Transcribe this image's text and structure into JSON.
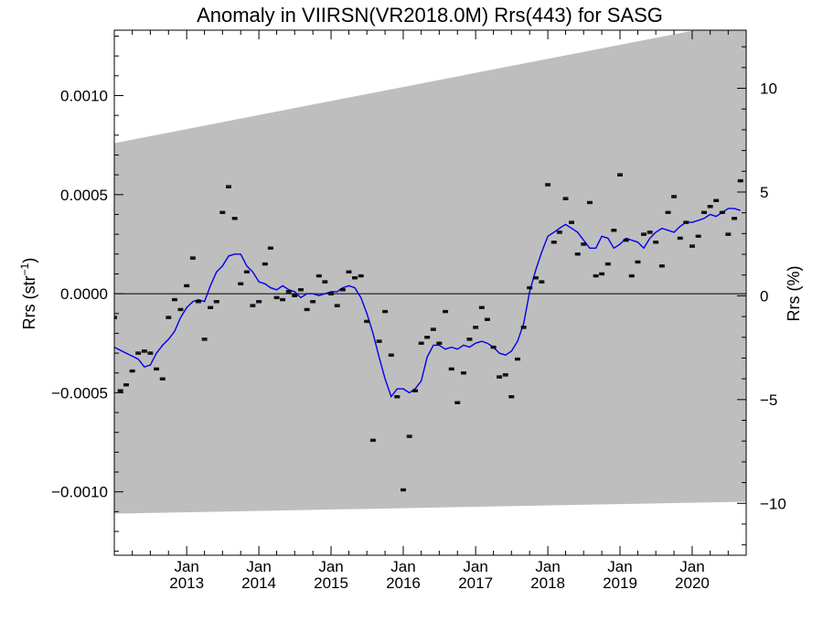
{
  "chart_data": {
    "type": "scatter",
    "title": "Anomaly in VIIRSN(VR2018.0M) Rrs(443) for SASG",
    "ylabel_left": "Rrs (str⁻¹)",
    "ylabel_left_parts": {
      "base": "Rrs (str",
      "sup": "−1",
      "close": ")"
    },
    "ylabel_right": "Rrs (%)",
    "xlim": [
      "2012-01-01",
      "2020-09-30"
    ],
    "ylim_left": [
      -0.00132,
      0.00133
    ],
    "ylim_right": [
      -12.5,
      12.8
    ],
    "left_ticks": [
      {
        "value": 0.001,
        "label": "0.0010"
      },
      {
        "value": 0.0005,
        "label": "0.0005"
      },
      {
        "value": 0.0,
        "label": "0.0000"
      },
      {
        "value": -0.0005,
        "label": "−0.0005"
      },
      {
        "value": -0.001,
        "label": "−0.0010"
      }
    ],
    "right_ticks": [
      {
        "value": 10,
        "label": "10"
      },
      {
        "value": 5,
        "label": "5"
      },
      {
        "value": 0,
        "label": "0"
      },
      {
        "value": -5,
        "label": "−5"
      },
      {
        "value": -10,
        "label": "−10"
      }
    ],
    "x_ticks": [
      {
        "date": "2013-01-01",
        "month": "Jan",
        "year": "2013"
      },
      {
        "date": "2014-01-01",
        "month": "Jan",
        "year": "2014"
      },
      {
        "date": "2015-01-01",
        "month": "Jan",
        "year": "2015"
      },
      {
        "date": "2016-01-01",
        "month": "Jan",
        "year": "2016"
      },
      {
        "date": "2017-01-01",
        "month": "Jan",
        "year": "2017"
      },
      {
        "date": "2018-01-01",
        "month": "Jan",
        "year": "2018"
      },
      {
        "date": "2019-01-01",
        "month": "Jan",
        "year": "2019"
      },
      {
        "date": "2020-01-01",
        "month": "Jan",
        "year": "2020"
      }
    ],
    "zero_line": 0.0,
    "uncertainty_band": {
      "color": "#bebebe",
      "upper": [
        {
          "date": "2012-01-01",
          "value": 0.00076
        },
        {
          "date": "2020-09-30",
          "value": 0.00138
        }
      ],
      "lower": [
        {
          "date": "2012-01-01",
          "value": -0.00111
        },
        {
          "date": "2020-09-30",
          "value": -0.00105
        }
      ]
    },
    "series": [
      {
        "style": "points",
        "color": "#000000",
        "error_bar": 6e-06,
        "points": [
          {
            "x": "2012-01-01",
            "y": -0.00012
          },
          {
            "x": "2012-02-01",
            "y": -0.00049
          },
          {
            "x": "2012-03-01",
            "y": -0.00046
          },
          {
            "x": "2012-04-01",
            "y": -0.00039
          },
          {
            "x": "2012-05-01",
            "y": -0.0003
          },
          {
            "x": "2012-06-01",
            "y": -0.00029
          },
          {
            "x": "2012-07-01",
            "y": -0.0003
          },
          {
            "x": "2012-08-01",
            "y": -0.00038
          },
          {
            "x": "2012-09-01",
            "y": -0.00043
          },
          {
            "x": "2012-10-01",
            "y": -0.00012
          },
          {
            "x": "2012-11-01",
            "y": -3e-05
          },
          {
            "x": "2012-12-01",
            "y": -8e-05
          },
          {
            "x": "2013-01-01",
            "y": 4e-05
          },
          {
            "x": "2013-02-01",
            "y": 0.00018
          },
          {
            "x": "2013-03-01",
            "y": -4e-05
          },
          {
            "x": "2013-04-01",
            "y": -0.00023
          },
          {
            "x": "2013-05-01",
            "y": -7e-05
          },
          {
            "x": "2013-06-01",
            "y": -4e-05
          },
          {
            "x": "2013-07-01",
            "y": 0.00041
          },
          {
            "x": "2013-08-01",
            "y": 0.00054
          },
          {
            "x": "2013-09-01",
            "y": 0.00038
          },
          {
            "x": "2013-10-01",
            "y": 5e-05
          },
          {
            "x": "2013-11-01",
            "y": 0.00011
          },
          {
            "x": "2013-12-01",
            "y": -6e-05
          },
          {
            "x": "2014-01-01",
            "y": -4e-05
          },
          {
            "x": "2014-02-01",
            "y": 0.00015
          },
          {
            "x": "2014-03-01",
            "y": 0.00023
          },
          {
            "x": "2014-04-01",
            "y": -2e-05
          },
          {
            "x": "2014-05-01",
            "y": -3e-05
          },
          {
            "x": "2014-06-01",
            "y": 1e-05
          },
          {
            "x": "2014-07-01",
            "y": -1e-05
          },
          {
            "x": "2014-08-01",
            "y": 2e-05
          },
          {
            "x": "2014-09-01",
            "y": -8e-05
          },
          {
            "x": "2014-10-01",
            "y": -4e-05
          },
          {
            "x": "2014-11-01",
            "y": 9e-05
          },
          {
            "x": "2014-12-01",
            "y": 6e-05
          },
          {
            "x": "2015-01-01",
            "y": 0.0
          },
          {
            "x": "2015-02-01",
            "y": -6e-05
          },
          {
            "x": "2015-03-01",
            "y": 2e-05
          },
          {
            "x": "2015-04-01",
            "y": 0.00011
          },
          {
            "x": "2015-05-01",
            "y": 8e-05
          },
          {
            "x": "2015-06-01",
            "y": 9e-05
          },
          {
            "x": "2015-07-01",
            "y": -0.00014
          },
          {
            "x": "2015-08-01",
            "y": -0.00074
          },
          {
            "x": "2015-09-01",
            "y": -0.00024
          },
          {
            "x": "2015-10-01",
            "y": -9e-05
          },
          {
            "x": "2015-11-01",
            "y": -0.00031
          },
          {
            "x": "2015-12-01",
            "y": -0.00052
          },
          {
            "x": "2016-01-01",
            "y": -0.00099
          },
          {
            "x": "2016-02-01",
            "y": -0.00072
          },
          {
            "x": "2016-03-01",
            "y": -0.00049
          },
          {
            "x": "2016-04-01",
            "y": -0.00025
          },
          {
            "x": "2016-05-01",
            "y": -0.00022
          },
          {
            "x": "2016-06-01",
            "y": -0.00018
          },
          {
            "x": "2016-07-01",
            "y": -0.00025
          },
          {
            "x": "2016-08-01",
            "y": -9e-05
          },
          {
            "x": "2016-09-01",
            "y": -0.00038
          },
          {
            "x": "2016-10-01",
            "y": -0.00055
          },
          {
            "x": "2016-11-01",
            "y": -0.0004
          },
          {
            "x": "2016-12-01",
            "y": -0.00023
          },
          {
            "x": "2017-01-01",
            "y": -0.00017
          },
          {
            "x": "2017-02-01",
            "y": -7e-05
          },
          {
            "x": "2017-03-01",
            "y": -0.00013
          },
          {
            "x": "2017-04-01",
            "y": -0.00027
          },
          {
            "x": "2017-05-01",
            "y": -0.00042
          },
          {
            "x": "2017-06-01",
            "y": -0.00041
          },
          {
            "x": "2017-07-01",
            "y": -0.00052
          },
          {
            "x": "2017-08-01",
            "y": -0.00033
          },
          {
            "x": "2017-09-01",
            "y": -0.00017
          },
          {
            "x": "2017-10-01",
            "y": 3e-05
          },
          {
            "x": "2017-11-01",
            "y": 8e-05
          },
          {
            "x": "2017-12-01",
            "y": 6e-05
          },
          {
            "x": "2018-01-01",
            "y": 0.00055
          },
          {
            "x": "2018-02-01",
            "y": 0.00026
          },
          {
            "x": "2018-03-01",
            "y": 0.00031
          },
          {
            "x": "2018-04-01",
            "y": 0.00048
          },
          {
            "x": "2018-05-01",
            "y": 0.00036
          },
          {
            "x": "2018-06-01",
            "y": 0.0002
          },
          {
            "x": "2018-07-01",
            "y": 0.00025
          },
          {
            "x": "2018-08-01",
            "y": 0.00046
          },
          {
            "x": "2018-09-01",
            "y": 9e-05
          },
          {
            "x": "2018-10-01",
            "y": 0.0001
          },
          {
            "x": "2018-11-01",
            "y": 0.00015
          },
          {
            "x": "2018-12-01",
            "y": 0.00032
          },
          {
            "x": "2019-01-01",
            "y": 0.0006
          },
          {
            "x": "2019-02-01",
            "y": 0.00027
          },
          {
            "x": "2019-03-01",
            "y": 9e-05
          },
          {
            "x": "2019-04-01",
            "y": 0.00016
          },
          {
            "x": "2019-05-01",
            "y": 0.0003
          },
          {
            "x": "2019-06-01",
            "y": 0.00031
          },
          {
            "x": "2019-07-01",
            "y": 0.00026
          },
          {
            "x": "2019-08-01",
            "y": 0.00014
          },
          {
            "x": "2019-09-01",
            "y": 0.00041
          },
          {
            "x": "2019-10-01",
            "y": 0.00049
          },
          {
            "x": "2019-11-01",
            "y": 0.00028
          },
          {
            "x": "2019-12-01",
            "y": 0.00036
          },
          {
            "x": "2020-01-01",
            "y": 0.00024
          },
          {
            "x": "2020-02-01",
            "y": 0.00029
          },
          {
            "x": "2020-03-01",
            "y": 0.00041
          },
          {
            "x": "2020-04-01",
            "y": 0.00044
          },
          {
            "x": "2020-05-01",
            "y": 0.00047
          },
          {
            "x": "2020-06-01",
            "y": 0.00041
          },
          {
            "x": "2020-07-01",
            "y": 0.0003
          },
          {
            "x": "2020-08-01",
            "y": 0.00038
          },
          {
            "x": "2020-09-01",
            "y": 0.00057
          }
        ]
      },
      {
        "style": "line",
        "color": "#0000ee",
        "points": [
          {
            "x": "2012-01-01",
            "y": -0.00027
          },
          {
            "x": "2012-03-01",
            "y": -0.0003
          },
          {
            "x": "2012-05-01",
            "y": -0.00033
          },
          {
            "x": "2012-06-01",
            "y": -0.00037
          },
          {
            "x": "2012-07-01",
            "y": -0.00036
          },
          {
            "x": "2012-08-01",
            "y": -0.0003
          },
          {
            "x": "2012-09-01",
            "y": -0.00026
          },
          {
            "x": "2012-10-01",
            "y": -0.00023
          },
          {
            "x": "2012-11-01",
            "y": -0.00019
          },
          {
            "x": "2012-12-01",
            "y": -0.00012
          },
          {
            "x": "2013-01-01",
            "y": -7e-05
          },
          {
            "x": "2013-02-01",
            "y": -4e-05
          },
          {
            "x": "2013-03-01",
            "y": -3e-05
          },
          {
            "x": "2013-04-01",
            "y": -4e-05
          },
          {
            "x": "2013-05-01",
            "y": 4e-05
          },
          {
            "x": "2013-06-01",
            "y": 0.00011
          },
          {
            "x": "2013-07-01",
            "y": 0.00014
          },
          {
            "x": "2013-08-01",
            "y": 0.00019
          },
          {
            "x": "2013-09-01",
            "y": 0.0002
          },
          {
            "x": "2013-10-01",
            "y": 0.0002
          },
          {
            "x": "2013-11-01",
            "y": 0.00014
          },
          {
            "x": "2013-12-01",
            "y": 0.00011
          },
          {
            "x": "2014-01-01",
            "y": 6e-05
          },
          {
            "x": "2014-02-01",
            "y": 5e-05
          },
          {
            "x": "2014-03-01",
            "y": 3e-05
          },
          {
            "x": "2014-04-01",
            "y": 2e-05
          },
          {
            "x": "2014-05-01",
            "y": 4e-05
          },
          {
            "x": "2014-06-01",
            "y": 2e-05
          },
          {
            "x": "2014-07-01",
            "y": 1e-05
          },
          {
            "x": "2014-08-01",
            "y": -2e-05
          },
          {
            "x": "2014-09-01",
            "y": 0.0
          },
          {
            "x": "2014-10-01",
            "y": 0.0
          },
          {
            "x": "2014-11-01",
            "y": -1e-05
          },
          {
            "x": "2014-12-01",
            "y": 0.0
          },
          {
            "x": "2015-01-01",
            "y": 1e-05
          },
          {
            "x": "2015-02-01",
            "y": 1e-05
          },
          {
            "x": "2015-03-01",
            "y": 3e-05
          },
          {
            "x": "2015-04-01",
            "y": 4e-05
          },
          {
            "x": "2015-05-01",
            "y": 3e-05
          },
          {
            "x": "2015-06-01",
            "y": -2e-05
          },
          {
            "x": "2015-07-01",
            "y": -0.0001
          },
          {
            "x": "2015-08-01",
            "y": -0.0002
          },
          {
            "x": "2015-09-01",
            "y": -0.00032
          },
          {
            "x": "2015-10-01",
            "y": -0.00043
          },
          {
            "x": "2015-11-01",
            "y": -0.00052
          },
          {
            "x": "2015-12-01",
            "y": -0.00048
          },
          {
            "x": "2016-01-01",
            "y": -0.00048
          },
          {
            "x": "2016-02-01",
            "y": -0.0005
          },
          {
            "x": "2016-03-01",
            "y": -0.00048
          },
          {
            "x": "2016-04-01",
            "y": -0.00044
          },
          {
            "x": "2016-05-01",
            "y": -0.00032
          },
          {
            "x": "2016-06-01",
            "y": -0.00026
          },
          {
            "x": "2016-07-01",
            "y": -0.00026
          },
          {
            "x": "2016-08-01",
            "y": -0.00028
          },
          {
            "x": "2016-09-01",
            "y": -0.00027
          },
          {
            "x": "2016-10-01",
            "y": -0.00028
          },
          {
            "x": "2016-11-01",
            "y": -0.00026
          },
          {
            "x": "2016-12-01",
            "y": -0.00027
          },
          {
            "x": "2017-01-01",
            "y": -0.00025
          },
          {
            "x": "2017-02-01",
            "y": -0.00024
          },
          {
            "x": "2017-03-01",
            "y": -0.00025
          },
          {
            "x": "2017-04-01",
            "y": -0.00027
          },
          {
            "x": "2017-05-01",
            "y": -0.0003
          },
          {
            "x": "2017-06-01",
            "y": -0.00031
          },
          {
            "x": "2017-07-01",
            "y": -0.00029
          },
          {
            "x": "2017-08-01",
            "y": -0.00024
          },
          {
            "x": "2017-09-01",
            "y": -0.00015
          },
          {
            "x": "2017-10-01",
            "y": 1e-05
          },
          {
            "x": "2017-11-01",
            "y": 0.00012
          },
          {
            "x": "2017-12-01",
            "y": 0.00021
          },
          {
            "x": "2018-01-01",
            "y": 0.00029
          },
          {
            "x": "2018-02-01",
            "y": 0.00031
          },
          {
            "x": "2018-03-01",
            "y": 0.00033
          },
          {
            "x": "2018-04-01",
            "y": 0.00035
          },
          {
            "x": "2018-05-01",
            "y": 0.00033
          },
          {
            "x": "2018-06-01",
            "y": 0.00031
          },
          {
            "x": "2018-07-01",
            "y": 0.00027
          },
          {
            "x": "2018-08-01",
            "y": 0.00023
          },
          {
            "x": "2018-09-01",
            "y": 0.00023
          },
          {
            "x": "2018-10-01",
            "y": 0.00029
          },
          {
            "x": "2018-11-01",
            "y": 0.00028
          },
          {
            "x": "2018-12-01",
            "y": 0.00023
          },
          {
            "x": "2019-01-01",
            "y": 0.00025
          },
          {
            "x": "2019-02-01",
            "y": 0.00028
          },
          {
            "x": "2019-03-01",
            "y": 0.00027
          },
          {
            "x": "2019-04-01",
            "y": 0.00026
          },
          {
            "x": "2019-05-01",
            "y": 0.00023
          },
          {
            "x": "2019-06-01",
            "y": 0.00028
          },
          {
            "x": "2019-07-01",
            "y": 0.00031
          },
          {
            "x": "2019-08-01",
            "y": 0.00033
          },
          {
            "x": "2019-09-01",
            "y": 0.00032
          },
          {
            "x": "2019-10-01",
            "y": 0.00031
          },
          {
            "x": "2019-11-01",
            "y": 0.00034
          },
          {
            "x": "2019-12-01",
            "y": 0.00036
          },
          {
            "x": "2020-01-01",
            "y": 0.00036
          },
          {
            "x": "2020-02-01",
            "y": 0.00037
          },
          {
            "x": "2020-03-01",
            "y": 0.00038
          },
          {
            "x": "2020-04-01",
            "y": 0.0004
          },
          {
            "x": "2020-05-01",
            "y": 0.00039
          },
          {
            "x": "2020-06-01",
            "y": 0.00041
          },
          {
            "x": "2020-07-01",
            "y": 0.00043
          },
          {
            "x": "2020-08-01",
            "y": 0.00043
          },
          {
            "x": "2020-09-01",
            "y": 0.00042
          }
        ]
      }
    ]
  }
}
